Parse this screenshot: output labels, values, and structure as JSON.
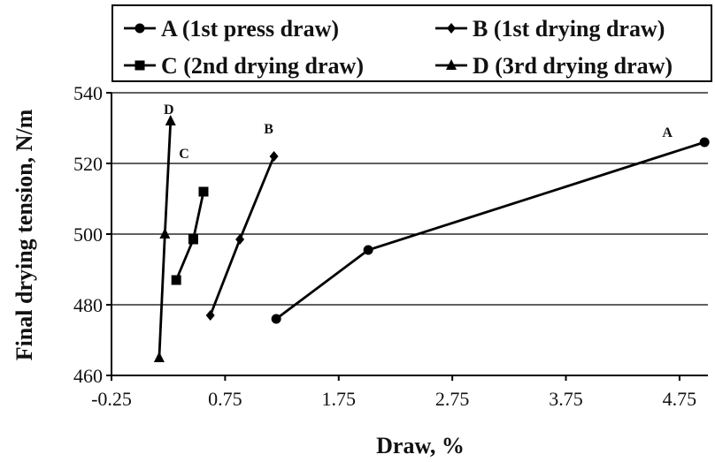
{
  "chart_data": {
    "type": "line",
    "xlabel": "Draw, %",
    "ylabel": "Final drying tension, N/m",
    "xlim": [
      -0.25,
      5.0
    ],
    "ylim": [
      460,
      540
    ],
    "xticks": [
      "-0.25",
      "0.75",
      "1.75",
      "2.75",
      "3.75",
      "4.75"
    ],
    "yticks": [
      "460",
      "480",
      "500",
      "520",
      "540"
    ],
    "grid": "horizontal",
    "legend_position": "top",
    "series": [
      {
        "name": "A (1st press draw)",
        "marker": "circle",
        "label": "A",
        "x": [
          1.2,
          2.01,
          4.97
        ],
        "y": [
          476,
          495.5,
          526
        ]
      },
      {
        "name": "B (1st drying draw)",
        "marker": "diamond",
        "label": "B",
        "x": [
          0.62,
          0.88,
          1.18
        ],
        "y": [
          477,
          498.5,
          522
        ]
      },
      {
        "name": "C (2nd drying draw)",
        "marker": "square",
        "label": "C",
        "x": [
          0.32,
          0.47,
          0.56
        ],
        "y": [
          487,
          498.5,
          512
        ]
      },
      {
        "name": "D (3rd drying draw)",
        "marker": "triangle",
        "label": "D",
        "x": [
          0.17,
          0.22,
          0.27
        ],
        "y": [
          465,
          500,
          532
        ]
      }
    ]
  }
}
